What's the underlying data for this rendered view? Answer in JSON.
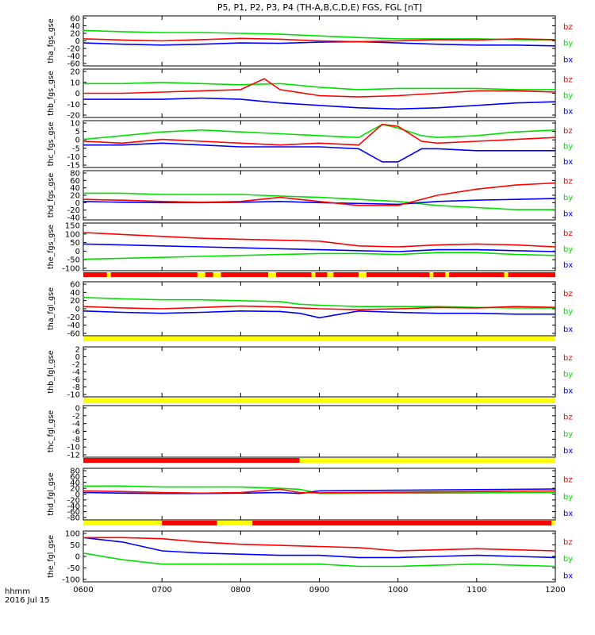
{
  "title": "P5, P1, P2, P3, P4 (TH-A,B,C,D,E) FGS, FGL [nT]",
  "x_axis": {
    "ticks": [
      "0600",
      "0700",
      "0800",
      "0900",
      "1000",
      "1100",
      "1200"
    ],
    "range_hours": [
      6,
      12
    ],
    "label_line1": "hhmm",
    "label_line2": "2016 Jul 15"
  },
  "legend_labels": [
    "bz",
    "by",
    "bx"
  ],
  "colors": {
    "bx": "#0000ff",
    "by": "#00e000",
    "bz": "#ff0000",
    "status_red": "#ff0000",
    "status_yellow": "#ffff00",
    "axis": "#000000"
  },
  "chart_data": [
    {
      "type": "line",
      "panel": "tha_fgs_gse",
      "ylabel": "tha_fgs_gse",
      "ylim": [
        -60,
        60
      ],
      "yticks": [
        "60",
        "40",
        "20",
        "0",
        "-20",
        "-40",
        "-60"
      ],
      "series": [
        {
          "name": "bz",
          "x": [
            6.0,
            6.5,
            7.0,
            7.5,
            8.0,
            8.5,
            9.0,
            9.5,
            10.0,
            10.5,
            11.0,
            11.5,
            12.0
          ],
          "y": [
            5,
            2,
            0,
            3,
            6,
            4,
            0,
            -2,
            0,
            3,
            2,
            5,
            3
          ]
        },
        {
          "name": "by",
          "x": [
            6.0,
            6.5,
            7.0,
            7.5,
            8.0,
            8.5,
            9.0,
            9.5,
            10.0,
            10.5,
            11.0,
            11.5,
            12.0
          ],
          "y": [
            25,
            22,
            20,
            20,
            18,
            16,
            12,
            8,
            5,
            5,
            5,
            3,
            2
          ]
        },
        {
          "name": "bx",
          "x": [
            6.0,
            6.5,
            7.0,
            7.5,
            8.0,
            8.5,
            9.0,
            9.5,
            10.0,
            10.5,
            11.0,
            11.5,
            12.0
          ],
          "y": [
            -5,
            -8,
            -10,
            -8,
            -5,
            -6,
            -3,
            -2,
            -5,
            -8,
            -10,
            -10,
            -12
          ]
        }
      ]
    },
    {
      "type": "line",
      "panel": "thb_fgs_gse",
      "ylabel": "thb_fgs_gse",
      "ylim": [
        -20,
        20
      ],
      "yticks": [
        "20",
        "10",
        "0",
        "-10",
        "-20"
      ],
      "series": [
        {
          "name": "bz",
          "x": [
            6.0,
            6.5,
            7.0,
            7.5,
            8.0,
            8.3,
            8.5,
            9.0,
            9.5,
            10.0,
            10.5,
            11.0,
            11.5,
            12.0
          ],
          "y": [
            0,
            0,
            1,
            2,
            3,
            12,
            3,
            -2,
            -3,
            -2,
            0,
            2,
            2,
            1
          ]
        },
        {
          "name": "by",
          "x": [
            6.0,
            6.5,
            7.0,
            7.5,
            8.0,
            8.5,
            9.0,
            9.5,
            10.0,
            10.5,
            11.0,
            11.5,
            12.0
          ],
          "y": [
            8,
            8,
            9,
            8,
            7,
            8,
            5,
            3,
            4,
            4,
            4,
            3,
            3
          ]
        },
        {
          "name": "bx",
          "x": [
            6.0,
            6.5,
            7.0,
            7.5,
            8.0,
            8.5,
            9.0,
            9.5,
            10.0,
            10.5,
            11.0,
            11.5,
            12.0
          ],
          "y": [
            -5,
            -5,
            -5,
            -4,
            -5,
            -8,
            -10,
            -12,
            -13,
            -12,
            -10,
            -8,
            -7
          ]
        }
      ]
    },
    {
      "type": "line",
      "panel": "thc_fgs_gse",
      "ylabel": "thc_fgs_gse",
      "ylim": [
        -15,
        10
      ],
      "yticks": [
        "10",
        "5",
        "0",
        "-5",
        "-10",
        "-15"
      ],
      "series": [
        {
          "name": "bz",
          "x": [
            6.0,
            6.5,
            7.0,
            7.5,
            8.0,
            8.5,
            9.0,
            9.5,
            9.8,
            10.0,
            10.3,
            10.5,
            11.0,
            11.5,
            12.0
          ],
          "y": [
            -1,
            -2,
            0,
            -1,
            -2,
            -3,
            -2,
            -3,
            8,
            7,
            -1,
            -2,
            -1,
            0,
            1
          ]
        },
        {
          "name": "by",
          "x": [
            6.0,
            6.5,
            7.0,
            7.5,
            8.0,
            8.5,
            9.0,
            9.5,
            9.8,
            10.0,
            10.3,
            10.5,
            11.0,
            11.5,
            12.0
          ],
          "y": [
            0,
            2,
            4,
            5,
            4,
            3,
            2,
            1,
            8,
            6,
            2,
            1,
            2,
            4,
            5
          ]
        },
        {
          "name": "bx",
          "x": [
            6.0,
            6.5,
            7.0,
            7.5,
            8.0,
            8.5,
            9.0,
            9.5,
            9.8,
            10.0,
            10.3,
            10.5,
            11.0,
            11.5,
            12.0
          ],
          "y": [
            -3,
            -3,
            -2,
            -3,
            -4,
            -4,
            -4,
            -5,
            -12,
            -12,
            -5,
            -5,
            -6,
            -6,
            -6
          ]
        }
      ]
    },
    {
      "type": "line",
      "panel": "thd_fgs_gse",
      "ylabel": "thd_fgs_gse",
      "ylim": [
        -40,
        80
      ],
      "yticks": [
        "80",
        "60",
        "40",
        "20",
        "0",
        "-20",
        "-40"
      ],
      "series": [
        {
          "name": "bz",
          "x": [
            6.0,
            6.5,
            7.0,
            7.5,
            8.0,
            8.5,
            9.0,
            9.5,
            10.0,
            10.5,
            11.0,
            11.5,
            12.0
          ],
          "y": [
            10,
            8,
            5,
            3,
            5,
            15,
            5,
            -5,
            -5,
            20,
            35,
            45,
            50
          ]
        },
        {
          "name": "by",
          "x": [
            6.0,
            6.5,
            7.0,
            7.5,
            8.0,
            8.5,
            9.0,
            9.5,
            10.0,
            10.5,
            11.0,
            11.5,
            12.0
          ],
          "y": [
            25,
            25,
            22,
            22,
            22,
            18,
            15,
            10,
            5,
            -5,
            -10,
            -15,
            -15
          ]
        },
        {
          "name": "bx",
          "x": [
            6.0,
            6.5,
            7.0,
            7.5,
            8.0,
            8.5,
            9.0,
            9.5,
            10.0,
            10.5,
            11.0,
            11.5,
            12.0
          ],
          "y": [
            5,
            3,
            2,
            2,
            3,
            5,
            2,
            0,
            -2,
            5,
            8,
            10,
            12
          ]
        }
      ]
    },
    {
      "type": "line",
      "panel": "the_fgs_gse",
      "ylabel": "the_fgs_gse",
      "ylim": [
        -100,
        150
      ],
      "yticks": [
        "150",
        "100",
        "50",
        "0",
        "-50",
        "-100"
      ],
      "series": [
        {
          "name": "bz",
          "x": [
            6.0,
            6.5,
            7.0,
            7.5,
            8.0,
            8.5,
            9.0,
            9.5,
            10.0,
            10.5,
            11.0,
            11.5,
            12.0
          ],
          "y": [
            100,
            90,
            80,
            70,
            65,
            60,
            55,
            30,
            25,
            35,
            40,
            35,
            25
          ]
        },
        {
          "name": "by",
          "x": [
            6.0,
            6.5,
            7.0,
            7.5,
            8.0,
            8.5,
            9.0,
            9.5,
            10.0,
            10.5,
            11.0,
            11.5,
            12.0
          ],
          "y": [
            -40,
            -35,
            -30,
            -25,
            -20,
            -15,
            -10,
            -10,
            -15,
            -5,
            -5,
            -15,
            -20
          ]
        },
        {
          "name": "bx",
          "x": [
            6.0,
            6.5,
            7.0,
            7.5,
            8.0,
            8.5,
            9.0,
            9.5,
            10.0,
            10.5,
            11.0,
            11.5,
            12.0
          ],
          "y": [
            40,
            35,
            30,
            25,
            20,
            15,
            10,
            5,
            0,
            10,
            10,
            5,
            0
          ]
        }
      ]
    },
    {
      "type": "line",
      "panel": "tha_fgl_gse",
      "ylabel": "tha_fgl_gse",
      "ylim": [
        -60,
        60
      ],
      "yticks": [
        "60",
        "40",
        "20",
        "0",
        "-20",
        "-40",
        "-60"
      ],
      "series": [
        {
          "name": "bz",
          "x": [
            6.0,
            6.5,
            7.0,
            7.5,
            8.0,
            8.5,
            8.75,
            9.0,
            9.5,
            10.0,
            10.5,
            11.0,
            11.5,
            12.0
          ],
          "y": [
            5,
            2,
            0,
            3,
            6,
            4,
            2,
            0,
            -2,
            0,
            3,
            2,
            5,
            3
          ]
        },
        {
          "name": "by",
          "x": [
            6.0,
            6.5,
            7.0,
            7.5,
            8.0,
            8.5,
            8.75,
            9.0,
            9.5,
            10.0,
            10.5,
            11.0,
            11.5,
            12.0
          ],
          "y": [
            25,
            22,
            20,
            20,
            18,
            16,
            10,
            8,
            5,
            5,
            5,
            3,
            2,
            2
          ]
        },
        {
          "name": "bx",
          "x": [
            6.0,
            6.5,
            7.0,
            7.5,
            8.0,
            8.5,
            8.75,
            9.0,
            9.5,
            10.0,
            10.5,
            11.0,
            11.5,
            12.0
          ],
          "y": [
            -5,
            -8,
            -10,
            -8,
            -5,
            -6,
            -10,
            -20,
            -5,
            -8,
            -10,
            -10,
            -12,
            -12
          ]
        }
      ]
    },
    {
      "type": "line",
      "panel": "thb_fgl_gse",
      "ylabel": "thb_fgl_gse",
      "ylim": [
        -11,
        3
      ],
      "yticks": [
        "2",
        "0",
        "-2",
        "-4",
        "-6",
        "-8",
        "-10"
      ],
      "series": []
    },
    {
      "type": "line",
      "panel": "thc_fgl_gse",
      "ylabel": "thc_fgl_gse",
      "ylim": [
        -13,
        1
      ],
      "yticks": [
        "0",
        "-2",
        "-4",
        "-6",
        "-8",
        "-10",
        "-12"
      ],
      "series": []
    },
    {
      "type": "line",
      "panel": "thd_fgl_gse",
      "ylabel": "thd_fgl_gse",
      "ylim": [
        -80,
        80
      ],
      "yticks": [
        "80",
        "60",
        "40",
        "20",
        "0",
        "-20",
        "-40",
        "-60",
        "-80"
      ],
      "series": [
        {
          "name": "bz",
          "x": [
            6.0,
            6.5,
            7.0,
            7.5,
            8.0,
            8.5,
            8.75,
            9.0,
            10.0,
            11.0,
            12.0
          ],
          "y": [
            10,
            8,
            5,
            3,
            5,
            15,
            5,
            4,
            6,
            8,
            10
          ]
        },
        {
          "name": "by",
          "x": [
            6.0,
            6.5,
            7.0,
            7.5,
            8.0,
            8.5,
            8.75,
            9.0,
            10.0,
            11.0,
            12.0
          ],
          "y": [
            25,
            25,
            22,
            22,
            22,
            18,
            15,
            2,
            3,
            4,
            5
          ]
        },
        {
          "name": "bx",
          "x": [
            6.0,
            6.5,
            7.0,
            7.5,
            8.0,
            8.5,
            8.75,
            9.0,
            10.0,
            11.0,
            12.0
          ],
          "y": [
            5,
            3,
            2,
            2,
            3,
            5,
            2,
            10,
            12,
            14,
            16
          ]
        }
      ]
    },
    {
      "type": "line",
      "panel": "the_fgl_gse",
      "ylabel": "the_fgl_gse",
      "ylim": [
        -100,
        130
      ],
      "yticks": [
        "100",
        "50",
        "0",
        "-50",
        "-100"
      ],
      "series": [
        {
          "name": "bz",
          "x": [
            6.0,
            6.5,
            7.0,
            7.5,
            8.0,
            8.5,
            9.0,
            9.5,
            10.0,
            10.5,
            11.0,
            11.5,
            12.0
          ],
          "y": [
            100,
            100,
            95,
            80,
            70,
            65,
            60,
            55,
            40,
            45,
            50,
            45,
            40
          ]
        },
        {
          "name": "by",
          "x": [
            6.0,
            6.5,
            7.0,
            7.5,
            8.0,
            8.5,
            9.0,
            9.5,
            10.0,
            10.5,
            11.0,
            11.5,
            12.0
          ],
          "y": [
            30,
            0,
            -20,
            -20,
            -20,
            -20,
            -20,
            -30,
            -30,
            -25,
            -20,
            -25,
            -30
          ]
        },
        {
          "name": "bx",
          "x": [
            6.0,
            6.5,
            7.0,
            7.5,
            8.0,
            8.5,
            9.0,
            9.5,
            10.0,
            10.5,
            11.0,
            11.5,
            12.0
          ],
          "y": [
            100,
            80,
            40,
            30,
            25,
            20,
            20,
            10,
            10,
            15,
            20,
            15,
            10
          ]
        }
      ]
    }
  ],
  "status_bars": [
    {
      "after_panel": "the_fgs_gse",
      "segments": [
        {
          "x": [
            6.0,
            12.0
          ],
          "color": "status_red"
        },
        {
          "x": [
            6.3,
            6.35
          ],
          "color": "status_yellow"
        },
        {
          "x": [
            7.45,
            7.55
          ],
          "color": "status_yellow"
        },
        {
          "x": [
            7.65,
            7.75
          ],
          "color": "status_yellow"
        },
        {
          "x": [
            8.35,
            8.45
          ],
          "color": "status_yellow"
        },
        {
          "x": [
            8.9,
            8.95
          ],
          "color": "status_yellow"
        },
        {
          "x": [
            9.1,
            9.18
          ],
          "color": "status_yellow"
        },
        {
          "x": [
            9.5,
            9.6
          ],
          "color": "status_yellow"
        },
        {
          "x": [
            10.4,
            10.45
          ],
          "color": "status_yellow"
        },
        {
          "x": [
            10.6,
            10.65
          ],
          "color": "status_yellow"
        },
        {
          "x": [
            11.35,
            11.4
          ],
          "color": "status_yellow"
        }
      ]
    },
    {
      "after_panel": "tha_fgl_gse",
      "segments": [
        {
          "x": [
            6.0,
            12.0
          ],
          "color": "status_yellow"
        }
      ]
    },
    {
      "after_panel": "thb_fgl_gse",
      "segments": [
        {
          "x": [
            6.0,
            12.0
          ],
          "color": "status_yellow"
        }
      ]
    },
    {
      "after_panel": "thc_fgl_gse",
      "segments": [
        {
          "x": [
            6.0,
            8.75
          ],
          "color": "status_red"
        },
        {
          "x": [
            8.75,
            12.0
          ],
          "color": "status_yellow"
        }
      ]
    },
    {
      "after_panel": "thd_fgl_gse",
      "segments": [
        {
          "x": [
            6.0,
            7.0
          ],
          "color": "status_yellow"
        },
        {
          "x": [
            7.0,
            7.7
          ],
          "color": "status_red"
        },
        {
          "x": [
            7.7,
            8.15
          ],
          "color": "status_yellow"
        },
        {
          "x": [
            8.15,
            11.95
          ],
          "color": "status_red"
        },
        {
          "x": [
            11.95,
            12.0
          ],
          "color": "status_yellow"
        }
      ]
    }
  ]
}
